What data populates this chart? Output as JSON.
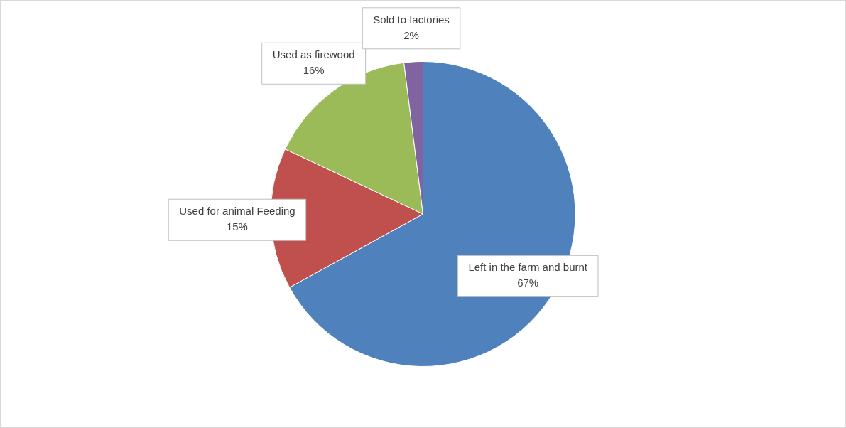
{
  "chart_data": {
    "type": "pie",
    "categories": [
      "Left in the farm and burnt",
      "Used for animal Feeding",
      "Used as firewood",
      "Sold to factories"
    ],
    "values": [
      67,
      15,
      16,
      2
    ],
    "colors": [
      "#4f81bd",
      "#c0504d",
      "#9bbb59",
      "#8064a2"
    ],
    "value_labels": [
      "67%",
      "15%",
      "16%",
      "2%"
    ],
    "legend": false
  }
}
